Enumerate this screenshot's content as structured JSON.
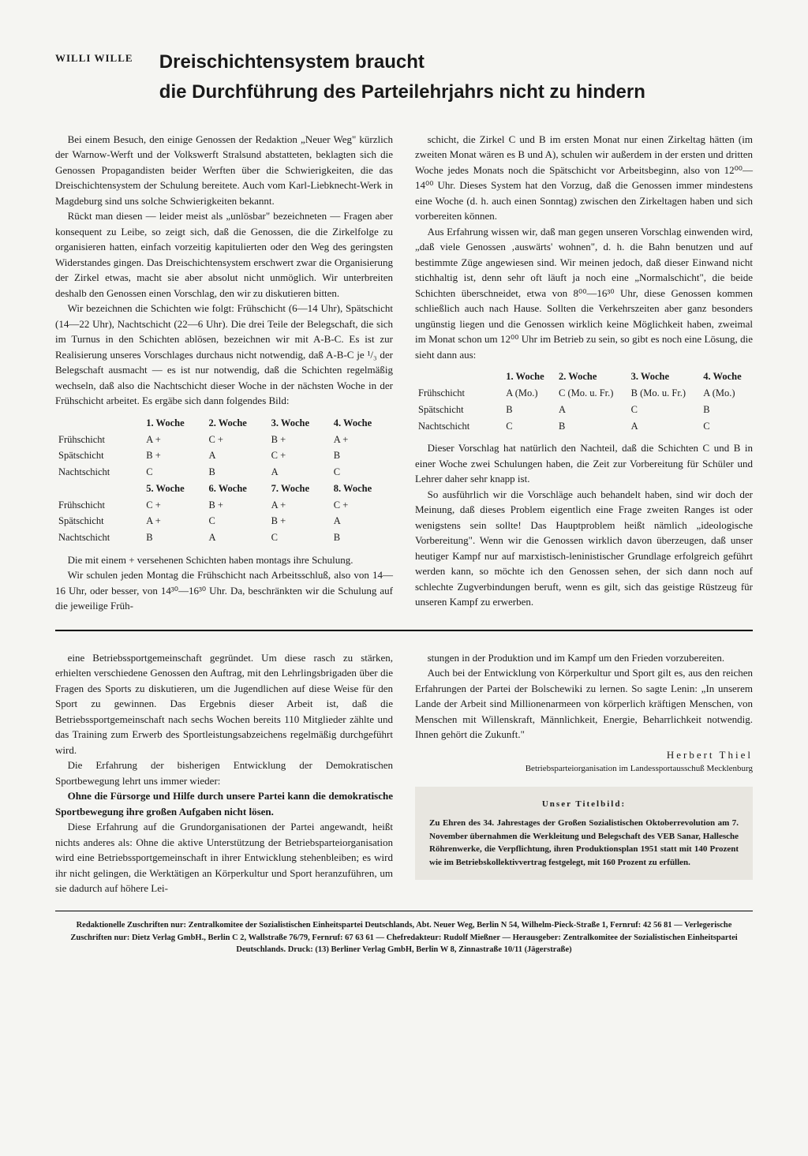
{
  "author": "WILLI WILLE",
  "title_line1": "Dreischichtensystem braucht",
  "title_line2": "die Durchführung des Parteilehrjahrs nicht zu hindern",
  "p1": "Bei einem Besuch, den einige Genossen der Redaktion „Neuer Weg\" kürzlich der Warnow-Werft und der Volkswerft Stralsund abstatteten, beklagten sich die Genossen Propagandisten beider Werften über die Schwierigkeiten, die das Dreischichtensystem der Schulung bereitete. Auch vom Karl-Liebknecht-Werk in Magdeburg sind uns solche Schwierigkeiten bekannt.",
  "p2": "Rückt man diesen — leider meist als „unlösbar\" bezeichneten — Fragen aber konsequent zu Leibe, so zeigt sich, daß die Genossen, die die Zirkelfolge zu organisieren hatten, einfach vorzeitig kapitulierten oder den Weg des geringsten Widerstandes gingen. Das Dreischichtensystem erschwert zwar die Organisierung der Zirkel etwas, macht sie aber absolut nicht unmöglich. Wir unterbreiten deshalb den Genossen einen Vorschlag, den wir zu diskutieren bitten.",
  "p3": "Wir bezeichnen die Schichten wie folgt: Frühschicht (6—14 Uhr), Spätschicht (14—22 Uhr), Nachtschicht (22—6 Uhr). Die drei Teile der Belegschaft, die sich im Turnus in den Schichten ablösen, bezeichnen wir mit A-B-C. Es ist zur Realisierung unseres Vorschlages durchaus nicht notwendig, daß A-B-C je ¹/₃ der Belegschaft ausmacht — es ist nur notwendig, daß die Schichten regelmäßig wechseln, daß also die Nachtschicht dieser Woche in der nächsten Woche in der Frühschicht arbeitet. Es ergäbe sich dann folgendes Bild:",
  "table1": {
    "headers": [
      "",
      "1. Woche",
      "2. Woche",
      "3. Woche",
      "4. Woche"
    ],
    "rows": [
      [
        "Frühschicht",
        "A +",
        "C +",
        "B +",
        "A +"
      ],
      [
        "Spätschicht",
        "B +",
        "A",
        "C +",
        "B"
      ],
      [
        "Nachtschicht",
        "C",
        "B",
        "A",
        "C"
      ]
    ],
    "headers2": [
      "",
      "5. Woche",
      "6. Woche",
      "7. Woche",
      "8. Woche"
    ],
    "rows2": [
      [
        "Frühschicht",
        "C +",
        "B +",
        "A +",
        "C +"
      ],
      [
        "Spätschicht",
        "A +",
        "C",
        "B +",
        "A"
      ],
      [
        "Nachtschicht",
        "B",
        "A",
        "C",
        "B"
      ]
    ]
  },
  "p4": "Die mit einem + versehenen Schichten haben montags ihre Schulung.",
  "p5": "Wir schulen jeden Montag die Frühschicht nach Arbeitsschluß, also von 14—16 Uhr, oder besser, von 14³⁰—16³⁰ Uhr. Da, beschränkten wir die Schulung auf die jeweilige Früh-",
  "p6": "schicht, die Zirkel C und B im ersten Monat nur einen Zirkeltag hätten (im zweiten Monat wären es B und A), schulen wir außerdem in der ersten und dritten Woche jedes Monats noch die Spätschicht vor Arbeitsbeginn, also von 12⁰⁰—14⁰⁰ Uhr. Dieses System hat den Vorzug, daß die Genossen immer mindestens eine Woche (d. h. auch einen Sonntag) zwischen den Zirkeltagen haben und sich vorbereiten können.",
  "p7": "Aus Erfahrung wissen wir, daß man gegen unseren Vorschlag einwenden wird, „daß viele Genossen ‚auswärts' wohnen\", d. h. die Bahn benutzen und auf bestimmte Züge angewiesen sind. Wir meinen jedoch, daß dieser Einwand nicht stichhaltig ist, denn sehr oft läuft ja noch eine „Normalschicht\", die beide Schichten überschneidet, etwa von 8⁰⁰—16³⁰ Uhr, diese Genossen kommen schließlich auch nach Hause. Sollten die Verkehrszeiten aber ganz besonders ungünstig liegen und die Genossen wirklich keine Möglichkeit haben, zweimal im Monat schon um 12⁰⁰ Uhr im Betrieb zu sein, so gibt es noch eine Lösung, die sieht dann aus:",
  "table2": {
    "headers": [
      "",
      "1. Woche",
      "2. Woche",
      "3. Woche",
      "4. Woche"
    ],
    "rows": [
      [
        "Frühschicht",
        "A (Mo.)",
        "C (Mo. u. Fr.)",
        "B (Mo. u. Fr.)",
        "A (Mo.)"
      ],
      [
        "Spätschicht",
        "B",
        "A",
        "C",
        "B"
      ],
      [
        "Nachtschicht",
        "C",
        "B",
        "A",
        "C"
      ]
    ]
  },
  "p8": "Dieser Vorschlag hat natürlich den Nachteil, daß die Schichten C und B in einer Woche zwei Schulungen haben, die Zeit zur Vorbereitung für Schüler und Lehrer daher sehr knapp ist.",
  "p9": "So ausführlich wir die Vorschläge auch behandelt haben, sind wir doch der Meinung, daß dieses Problem eigentlich eine Frage zweiten Ranges ist oder wenigstens sein sollte! Das Hauptproblem heißt nämlich „ideologische Vorbereitung\". Wenn wir die Genossen wirklich davon überzeugen, daß unser heutiger Kampf nur auf marxistisch-leninistischer Grundlage erfolgreich geführt werden kann, so möchte ich den Genossen sehen, der sich dann noch auf schlechte Zugverbindungen beruft, wenn es gilt, sich das geistige Rüstzeug für unseren Kampf zu erwerben.",
  "lp1": "eine Betriebssportgemeinschaft gegründet. Um diese rasch zu stärken, erhielten verschiedene Genossen den Auftrag, mit den Lehrlingsbrigaden über die Fragen des Sports zu diskutieren, um die Jugendlichen auf diese Weise für den Sport zu gewinnen. Das Ergebnis dieser Arbeit ist, daß die Betriebssportgemeinschaft nach sechs Wochen bereits 110 Mitglieder zählte und das Training zum Erwerb des Sportleistungsabzeichens regelmäßig durchgeführt wird.",
  "lp2": "Die Erfahrung der bisherigen Entwicklung der Demokratischen Sportbewegung lehrt uns immer wieder:",
  "lp3": "Ohne die Fürsorge und Hilfe durch unsere Partei kann die demokratische Sportbewegung ihre großen Aufgaben nicht lösen.",
  "lp4": "Diese Erfahrung auf die Grundorganisationen der Partei angewandt, heißt nichts anderes als: Ohne die aktive Unterstützung der Betriebsparteiorganisation wird eine Betriebssportgemeinschaft in ihrer Entwicklung stehenbleiben; es wird ihr nicht gelingen, die Werktätigen an Körperkultur und Sport heranzuführen, um sie dadurch auf höhere Lei-",
  "lp5": "stungen in der Produktion und im Kampf um den Frieden vorzubereiten.",
  "lp6": "Auch bei der Entwicklung von Körperkultur und Sport gilt es, aus den reichen Erfahrungen der Partei der Bolschewiki zu lernen. So sagte Lenin: „In unserem Lande der Arbeit sind Millionenarmeen von körperlich kräftigen Menschen, von Menschen mit Willenskraft, Männlichkeit, Energie, Beharrlichkeit notwendig. Ihnen gehört die Zukunft.\"",
  "signature": "Herbert Thiel",
  "sig_sub": "Betriebsparteiorganisation im Landessportausschuß Mecklenburg",
  "titelbild_head": "Unser Titelbild:",
  "titelbild_body": "Zu Ehren des 34. Jahrestages der Großen Sozialistischen Oktoberrevolution am 7. November übernahmen die Werkleitung und Belegschaft des VEB Sanar, Hallesche Röhrenwerke, die Verpflichtung, ihren Produktionsplan 1951 statt mit 140 Prozent wie im Betriebskollektivvertrag festgelegt, mit 160 Prozent zu erfüllen.",
  "imprint": "Redaktionelle Zuschriften nur: Zentralkomitee der Sozialistischen Einheitspartei Deutschlands, Abt. Neuer Weg, Berlin N 54, Wilhelm-Pieck-Straße 1, Fernruf: 42 56 81 — Verlegerische Zuschriften nur: Dietz Verlag GmbH., Berlin C 2, Wallstraße 76/79, Fernruf: 67 63 61 — Chefredakteur: Rudolf Mießner — Herausgeber: Zentralkomitee der Sozialistischen Einheitspartei Deutschlands. Druck: (13) Berliner Verlag GmbH, Berlin W 8, Zinnastraße 10/11 (Jägerstraße)"
}
